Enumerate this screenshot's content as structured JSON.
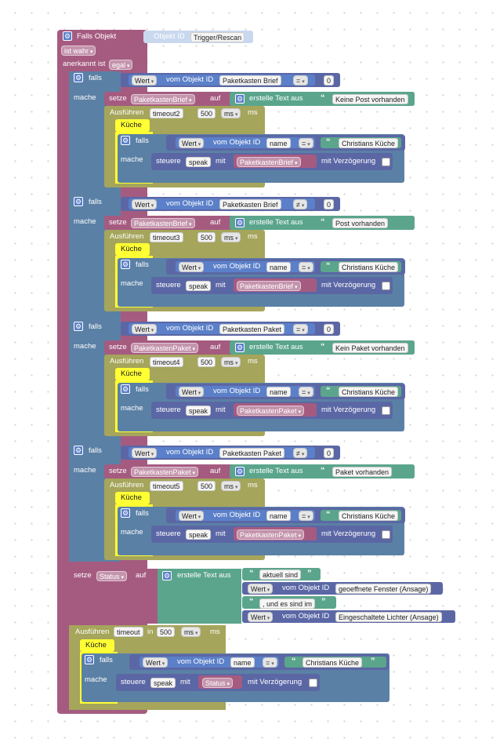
{
  "colors": {
    "event": "#a55b80",
    "logic": "#5b80a5",
    "iot": "#5b67a5",
    "iotLight": "#5b80c9",
    "text": "#5ba58c",
    "timeout": "#a5a55b",
    "math": "#5b67a5"
  },
  "trigger": {
    "title": "Falls Objekt",
    "objectLabel": "Objekt ID",
    "objectValue": "Trigger/Rescan",
    "condition": "ist wahr",
    "ackLabel": "anerkannt ist",
    "ackValue": "egal"
  },
  "labels": {
    "falls": "falls",
    "mache": "mache",
    "setze": "setze",
    "auf": "auf",
    "erstelle": "erstelle Text aus",
    "ausfuehren": "Ausführen",
    "in": "in",
    "ms": "ms",
    "kueche": "Küche",
    "wert": "Wert",
    "vomObjekt": "vom Objekt ID",
    "steuere": "steuere",
    "mit": "mit",
    "mitVerz": "mit Verzögerung",
    "speak": "speak",
    "name": "name",
    "christians": "Christians Küche",
    "eq": "=",
    "neq": "≠",
    "zero": "0"
  },
  "groups": [
    {
      "object": "Paketkasten Brief",
      "op": "=",
      "variable": "PaketkastenBrief",
      "text": "Keine Post vorhanden",
      "timeout": "timeout2",
      "ms": "500"
    },
    {
      "object": "Paketkasten Brief",
      "op": "≠",
      "variable": "PaketkastenBrief",
      "text": "Post vorhanden",
      "timeout": "timeout3",
      "ms": "500"
    },
    {
      "object": "Paketkasten Paket",
      "op": "=",
      "variable": "PaketkastenPaket",
      "text": "Kein Paket vorhanden",
      "timeout": "timeout4",
      "ms": "500"
    },
    {
      "object": "Paketkasten Paket",
      "op": "≠",
      "variable": "PaketkastenPaket",
      "text": "Paket vorhanden",
      "timeout": "timeout5",
      "ms": "500"
    }
  ],
  "status": {
    "variable": "Status",
    "parts": [
      "aktuell sind",
      "geoeffnete Fenster (Ansage)",
      ", und es sind im",
      "Eingeschaltete Lichter (Ansage)"
    ]
  },
  "finalTimeout": {
    "name": "timeout",
    "ms": "500"
  }
}
